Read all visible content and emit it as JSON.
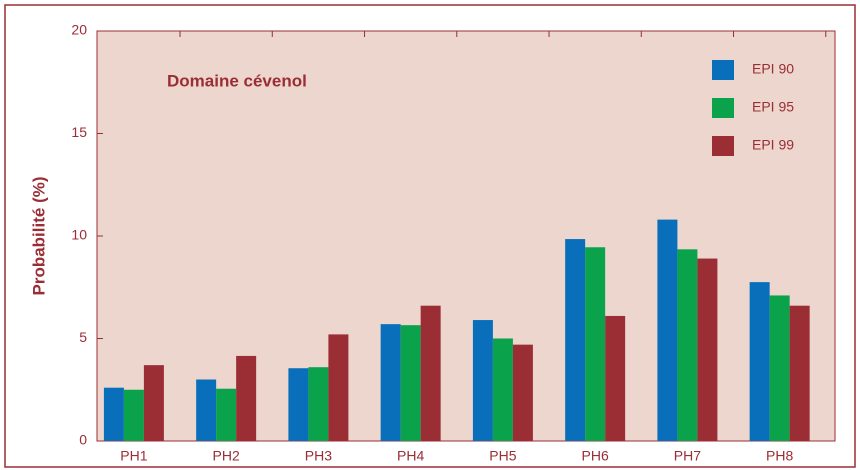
{
  "chart_data": {
    "type": "bar",
    "title": "Domaine cévenol",
    "y_label": "Probabilité (%)",
    "categories": [
      "PH1",
      "PH2",
      "PH3",
      "PH4",
      "PH5",
      "PH6",
      "PH7",
      "PH8"
    ],
    "series": [
      {
        "name": "EPI 90",
        "color": "#0a6fba",
        "values": [
          2.6,
          3.0,
          3.55,
          5.7,
          5.9,
          9.85,
          10.8,
          7.75
        ]
      },
      {
        "name": "EPI 95",
        "color": "#0aa24a",
        "values": [
          2.5,
          2.55,
          3.6,
          5.65,
          5.0,
          9.45,
          9.35,
          7.1
        ]
      },
      {
        "name": "EPI 99",
        "color": "#9b2d35",
        "values": [
          3.7,
          4.15,
          5.2,
          6.6,
          4.7,
          6.1,
          8.9,
          6.6
        ]
      }
    ],
    "ylim": [
      0,
      20
    ],
    "yticks": [
      0,
      5,
      10,
      15,
      20
    ],
    "legend": "upper right"
  }
}
